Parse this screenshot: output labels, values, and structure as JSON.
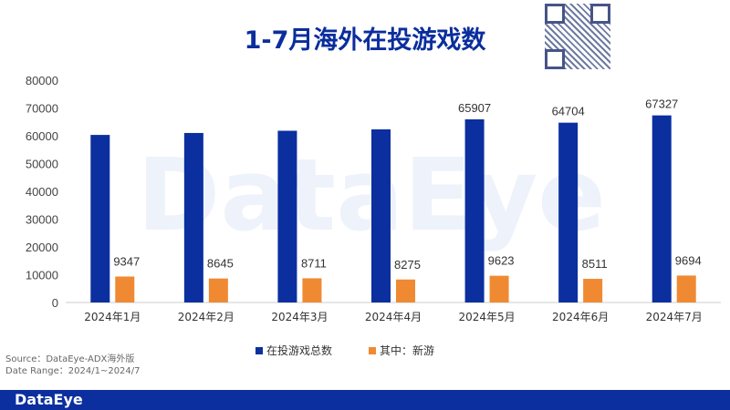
{
  "chart_data": {
    "type": "bar",
    "title": "1-7月海外在投游戏数",
    "categories": [
      "2024年1月",
      "2024年2月",
      "2024年3月",
      "2024年4月",
      "2024年5月",
      "2024年6月",
      "2024年7月"
    ],
    "series": [
      {
        "name": "在投游戏总数",
        "color": "#0b2f9f",
        "values": [
          60300,
          61000,
          61800,
          62300,
          65907,
          64704,
          67327
        ],
        "labels": [
          "",
          "",
          "",
          "",
          "65907",
          "64704",
          "67327"
        ]
      },
      {
        "name": "其中：新游",
        "color": "#ef8a33",
        "values": [
          9347,
          8645,
          8711,
          8275,
          9623,
          8511,
          9694
        ],
        "labels": [
          "9347",
          "8645",
          "8711",
          "8275",
          "9623",
          "8511",
          "9694"
        ]
      }
    ],
    "yticks": [
      "0",
      "10000",
      "20000",
      "30000",
      "40000",
      "50000",
      "60000",
      "70000",
      "80000"
    ],
    "ylim": [
      0,
      80000
    ],
    "legend": "bottom"
  },
  "source": "Source：DataEye-ADX海外版",
  "date_range": "Date Range：2024/1~2024/7",
  "brand": "DataEye",
  "watermark": "DataEye"
}
